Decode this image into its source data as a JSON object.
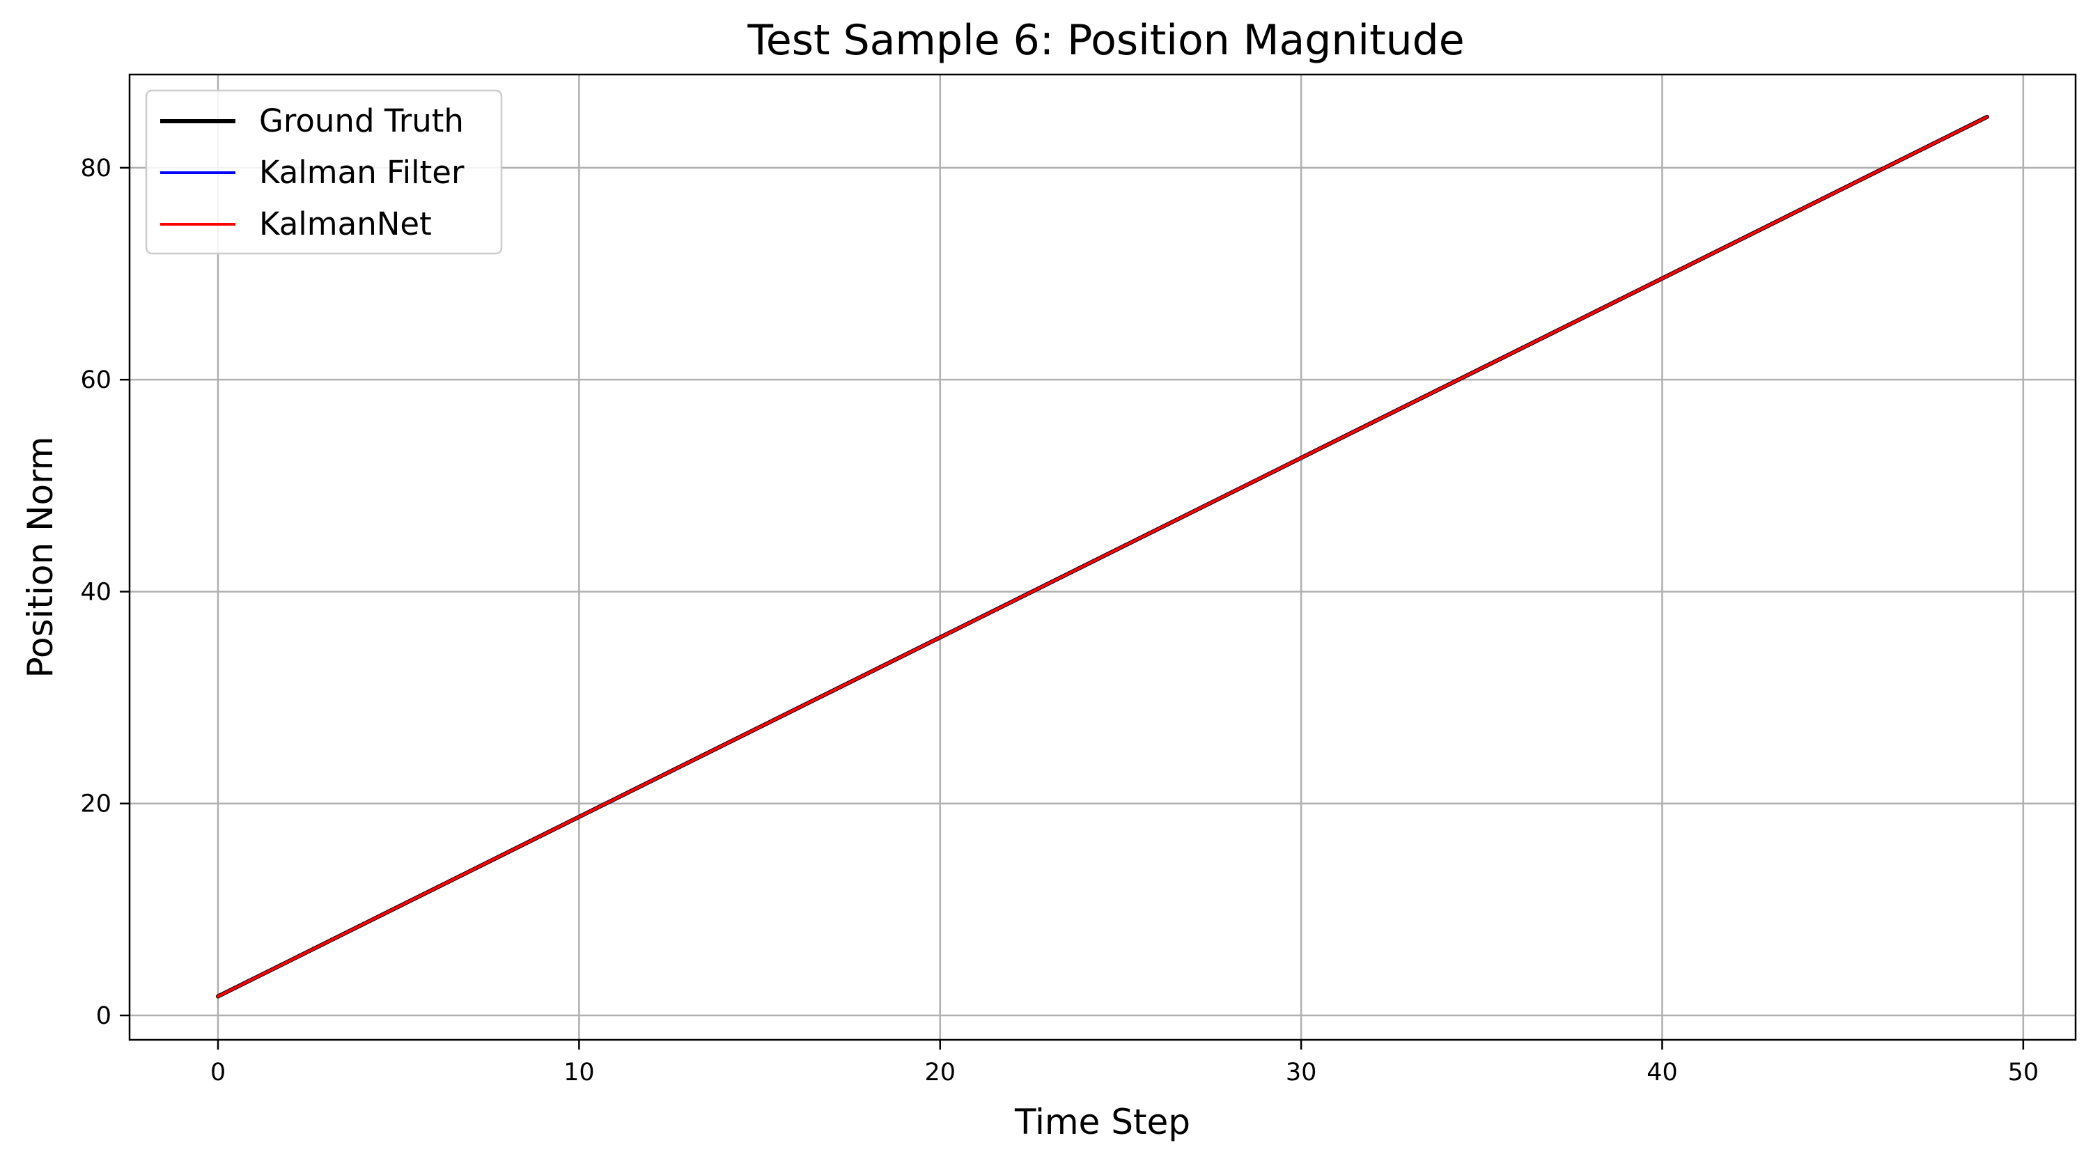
{
  "chart_data": {
    "type": "line",
    "title": "Test Sample 6: Position Magnitude",
    "xlabel": "Time Step",
    "ylabel": "Position Norm",
    "xlim": [
      -2.45,
      51.45
    ],
    "ylim": [
      -2.3,
      88.8
    ],
    "xticks": [
      0,
      10,
      20,
      30,
      40,
      50
    ],
    "yticks": [
      0,
      20,
      40,
      60,
      80
    ],
    "grid": true,
    "legend_position": "upper-left",
    "series": [
      {
        "name": "Ground Truth",
        "color": "#000000",
        "x": [
          0,
          49
        ],
        "y": [
          1.8,
          84.8
        ]
      },
      {
        "name": "Kalman Filter",
        "color": "#0000ff",
        "x": [
          0,
          49
        ],
        "y": [
          1.8,
          84.8
        ]
      },
      {
        "name": "KalmanNet",
        "color": "#ff0000",
        "x": [
          0,
          49
        ],
        "y": [
          1.8,
          84.8
        ]
      }
    ]
  }
}
